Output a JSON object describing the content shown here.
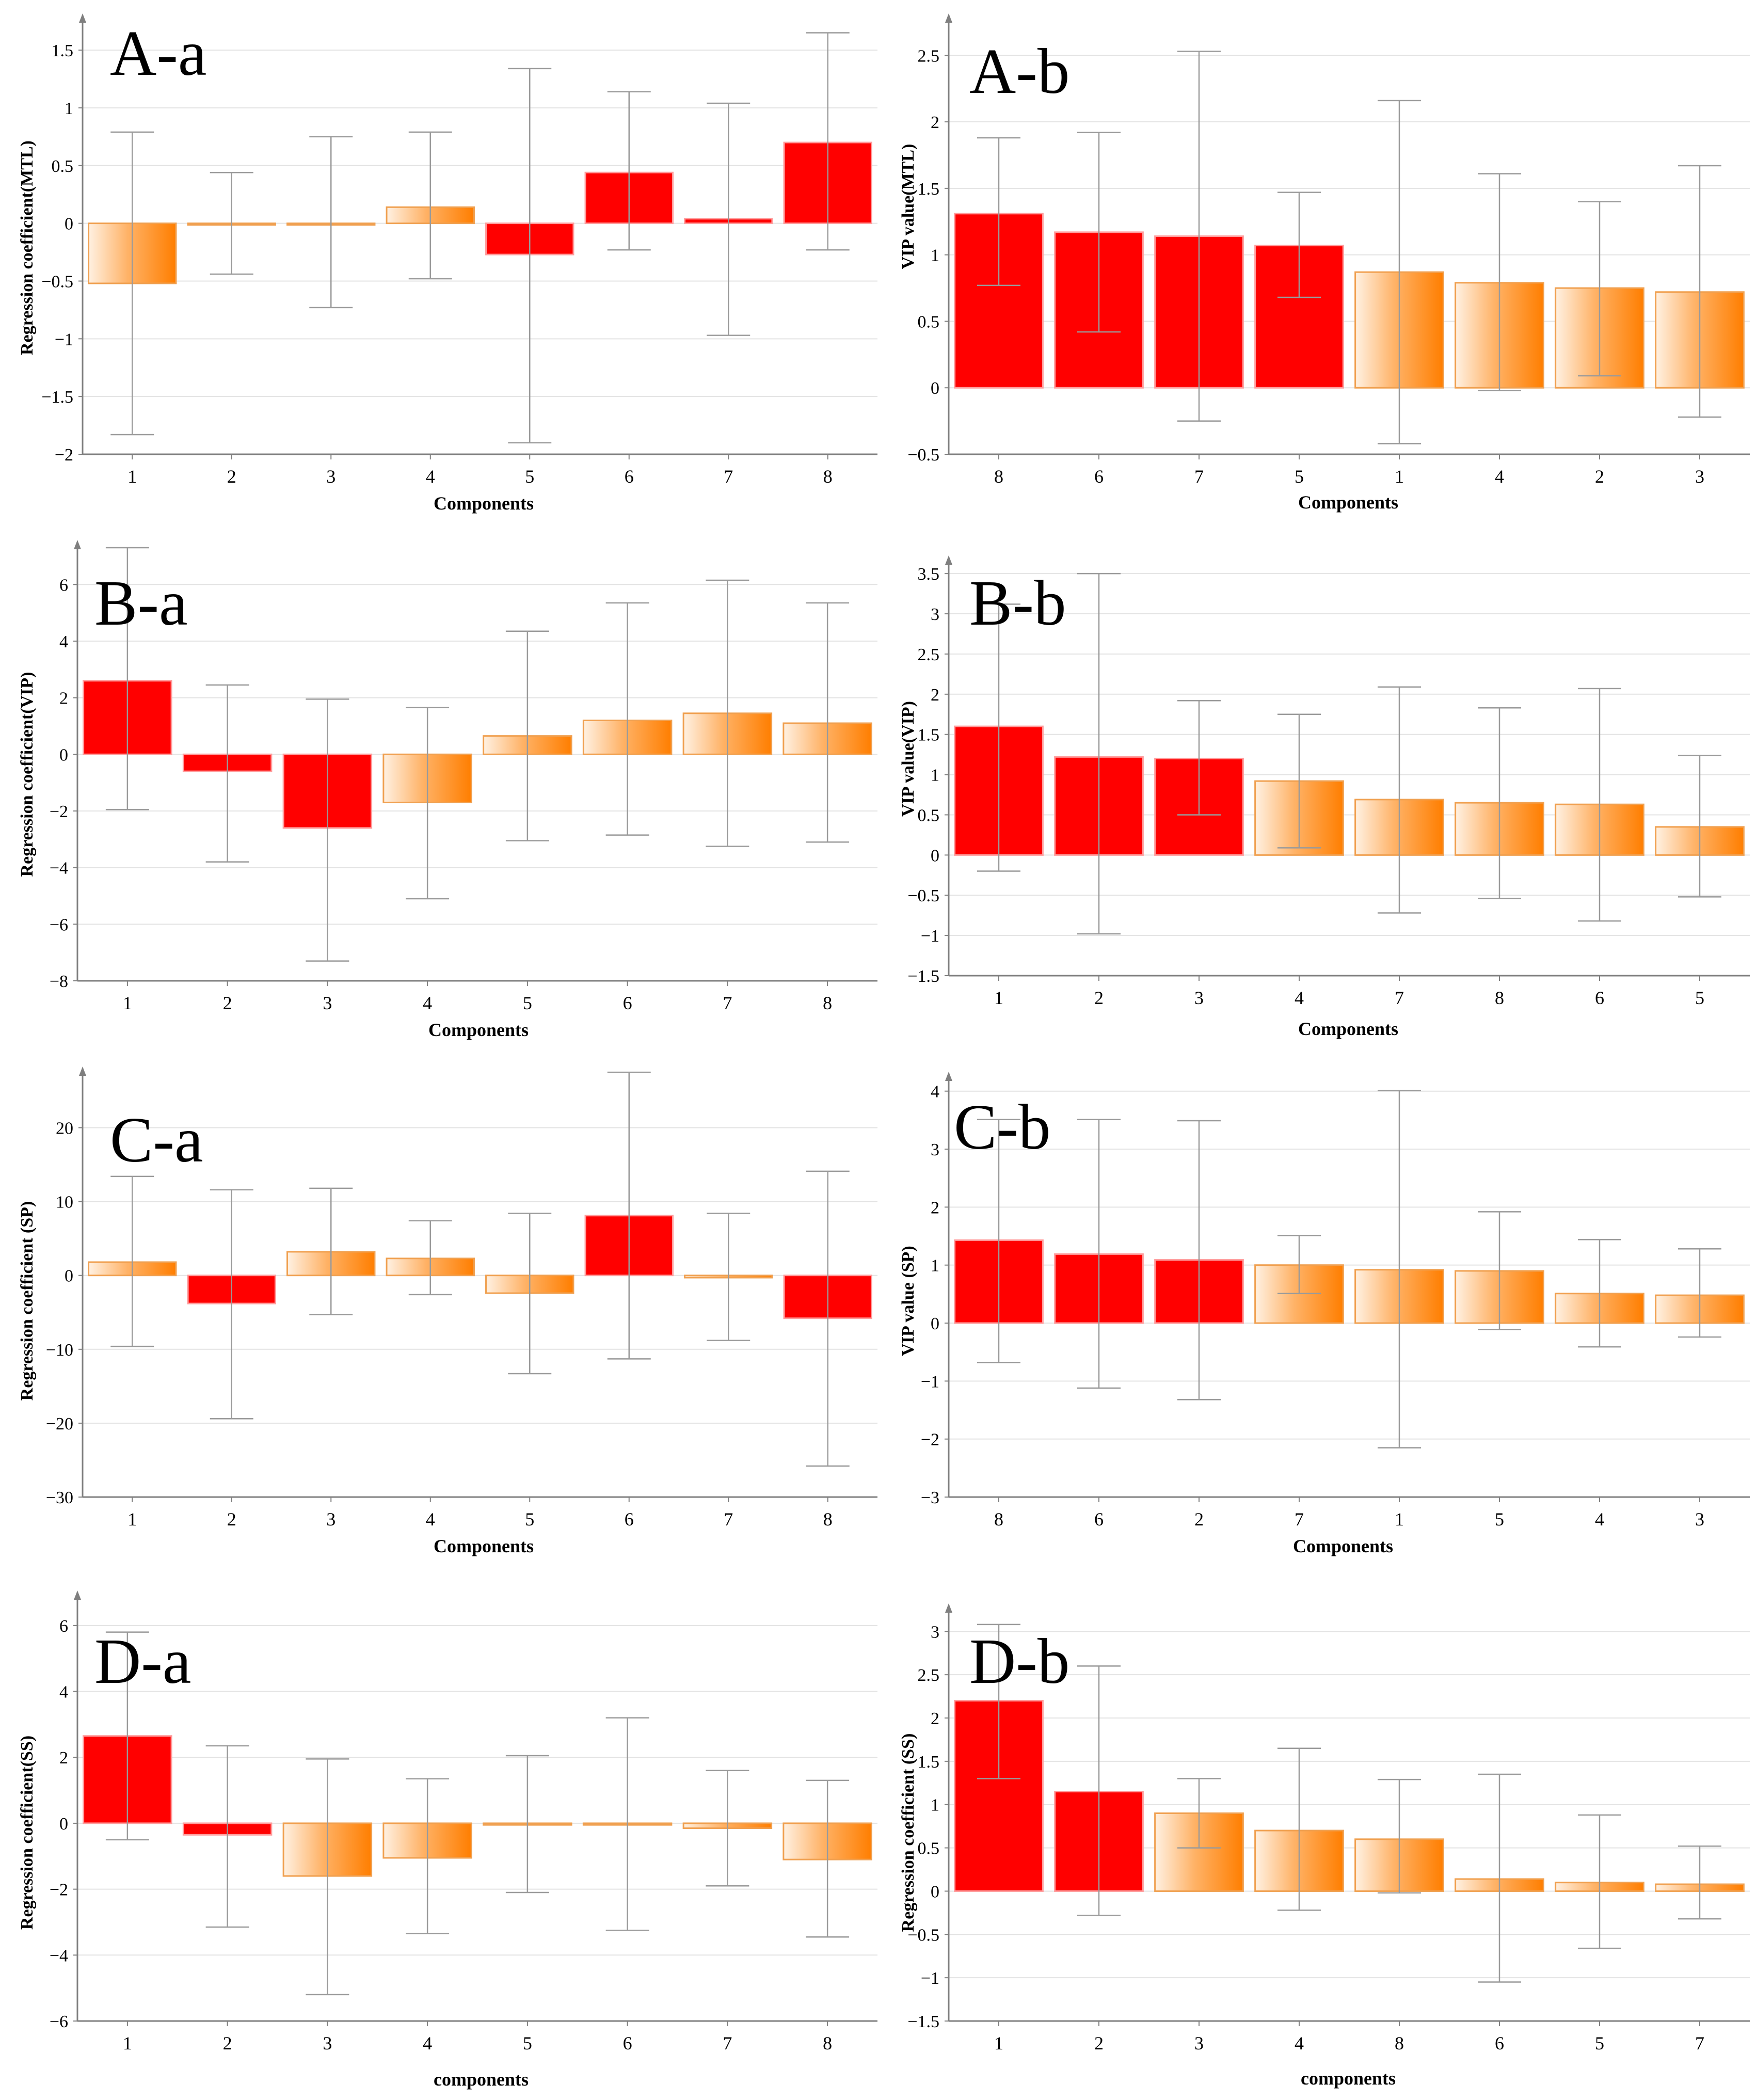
{
  "colors": {
    "red": "#ff0000",
    "orange_light": "#fff1e2",
    "orange_dark": "#ff7e00",
    "grid": "#e3e3e3",
    "axis": "#7f7f7f",
    "error_bar": "#9a9a9a",
    "text": "#000000"
  },
  "chart_data": [
    {
      "type": "bar",
      "panel_label": "A-a",
      "title": "",
      "xlabel": "Components",
      "ylabel": "Regression coefficient(MTL)",
      "ylim": [
        -2,
        1.8
      ],
      "yticks": [
        -2,
        -1.5,
        -1,
        -0.5,
        0,
        0.5,
        1,
        1.5
      ],
      "ytick_labels": [
        "−2",
        "−1.5",
        "−1",
        "−0.5",
        "0",
        "0.5",
        "1",
        "1.5"
      ],
      "categories": [
        "1",
        "2",
        "3",
        "4",
        "5",
        "6",
        "7",
        "8"
      ],
      "values": [
        -0.52,
        -0.01,
        -0.01,
        0.14,
        -0.27,
        0.44,
        0.04,
        0.7
      ],
      "error_low": [
        -1.83,
        -0.44,
        -0.73,
        -0.48,
        -1.9,
        -0.23,
        -0.97,
        -0.23
      ],
      "error_high": [
        0.79,
        0.44,
        0.75,
        0.79,
        1.34,
        1.14,
        1.04,
        1.65
      ],
      "bar_style": [
        "orange",
        "orange",
        "orange",
        "orange",
        "red",
        "red",
        "red",
        "red"
      ]
    },
    {
      "type": "bar",
      "panel_label": "A-b",
      "title": "",
      "xlabel": "Components",
      "ylabel": "VIP value(MTL)",
      "ylim": [
        -0.5,
        2.8
      ],
      "yticks": [
        -0.5,
        0,
        0.5,
        1,
        1.5,
        2,
        2.5
      ],
      "ytick_labels": [
        "−0.5",
        "0",
        "0.5",
        "1",
        "1.5",
        "2",
        "2.5"
      ],
      "categories": [
        "8",
        "6",
        "7",
        "5",
        "1",
        "4",
        "2",
        "3"
      ],
      "values": [
        1.31,
        1.17,
        1.14,
        1.07,
        0.87,
        0.79,
        0.75,
        0.72
      ],
      "error_low": [
        0.77,
        0.42,
        -0.25,
        0.68,
        -0.42,
        -0.02,
        0.09,
        -0.22
      ],
      "error_high": [
        1.88,
        1.92,
        2.53,
        1.47,
        2.16,
        1.61,
        1.4,
        1.67
      ],
      "bar_style": [
        "red",
        "red",
        "red",
        "red",
        "orange",
        "orange",
        "orange",
        "orange"
      ]
    },
    {
      "type": "bar",
      "panel_label": "B-a",
      "title": "",
      "xlabel": "Components",
      "ylabel": "Regression coefficient(VIP)",
      "ylim": [
        -8,
        7.5
      ],
      "yticks": [
        -8,
        -6,
        -4,
        -2,
        0,
        2,
        4,
        6
      ],
      "ytick_labels": [
        "−8",
        "−6",
        "−4",
        "−2",
        "0",
        "2",
        "4",
        "6"
      ],
      "categories": [
        "1",
        "2",
        "3",
        "4",
        "5",
        "6",
        "7",
        "8"
      ],
      "values": [
        2.6,
        -0.6,
        -2.6,
        -1.7,
        0.65,
        1.2,
        1.45,
        1.1
      ],
      "error_low": [
        -1.95,
        -3.8,
        -7.3,
        -5.1,
        -3.05,
        -2.85,
        -3.25,
        -3.1
      ],
      "error_high": [
        7.3,
        2.45,
        1.95,
        1.65,
        4.35,
        5.35,
        6.15,
        5.35
      ],
      "bar_style": [
        "red",
        "red",
        "red",
        "orange",
        "orange",
        "orange",
        "orange",
        "orange"
      ]
    },
    {
      "type": "bar",
      "panel_label": "B-b",
      "title": "",
      "xlabel": "Components",
      "ylabel": "VIP value(VIP)",
      "ylim": [
        -1.5,
        3.7
      ],
      "yticks": [
        -1.5,
        -1,
        -0.5,
        0,
        0.5,
        1,
        1.5,
        2,
        2.5,
        3,
        3.5
      ],
      "ytick_labels": [
        "−1.5",
        "−1",
        "−0.5",
        "0",
        "0.5",
        "1",
        "1.5",
        "2",
        "2.5",
        "3",
        "3.5"
      ],
      "categories": [
        "1",
        "2",
        "3",
        "4",
        "7",
        "8",
        "6",
        "5"
      ],
      "values": [
        1.6,
        1.22,
        1.2,
        0.92,
        0.69,
        0.65,
        0.63,
        0.35
      ],
      "error_low": [
        -0.2,
        -0.98,
        0.5,
        0.09,
        -0.72,
        -0.54,
        -0.82,
        -0.52
      ],
      "error_high": [
        3.12,
        3.5,
        1.92,
        1.75,
        2.09,
        1.83,
        2.07,
        1.24
      ],
      "bar_style": [
        "red",
        "red",
        "red",
        "orange",
        "orange",
        "orange",
        "orange",
        "orange"
      ]
    },
    {
      "type": "bar",
      "panel_label": "C-a",
      "title": "",
      "xlabel": "Components",
      "ylabel": "Regression coefficient  (SP)",
      "ylim": [
        -30,
        28
      ],
      "yticks": [
        -30,
        -20,
        -10,
        0,
        10,
        20
      ],
      "ytick_labels": [
        "−30",
        "−20",
        "−10",
        "0",
        "10",
        "20"
      ],
      "categories": [
        "1",
        "2",
        "3",
        "4",
        "5",
        "6",
        "7",
        "8"
      ],
      "values": [
        1.8,
        -3.8,
        3.2,
        2.3,
        -2.4,
        8.1,
        -0.3,
        -5.8
      ],
      "error_low": [
        -9.6,
        -19.4,
        -5.3,
        -2.6,
        -13.3,
        -11.3,
        -8.8,
        -25.8
      ],
      "error_high": [
        13.4,
        11.6,
        11.8,
        7.4,
        8.4,
        27.5,
        8.4,
        14.1
      ],
      "bar_style": [
        "orange",
        "red",
        "orange",
        "orange",
        "orange",
        "red",
        "orange",
        "red"
      ]
    },
    {
      "type": "bar",
      "panel_label": "C-b",
      "title": "",
      "xlabel": "Components",
      "ylabel": "VIP value  (SP)",
      "ylim": [
        -3,
        4.3
      ],
      "yticks": [
        -3,
        -2,
        -1,
        0,
        1,
        2,
        3,
        4
      ],
      "ytick_labels": [
        "−3",
        "−2",
        "−1",
        "0",
        "1",
        "2",
        "3",
        "4"
      ],
      "categories": [
        "8",
        "6",
        "2",
        "7",
        "1",
        "5",
        "4",
        "3"
      ],
      "values": [
        1.43,
        1.19,
        1.09,
        1.0,
        0.92,
        0.9,
        0.51,
        0.48
      ],
      "error_low": [
        -0.68,
        -1.12,
        -1.32,
        0.51,
        -2.15,
        -0.11,
        -0.41,
        -0.24
      ],
      "error_high": [
        3.51,
        3.51,
        3.49,
        1.51,
        4.01,
        1.92,
        1.44,
        1.28
      ],
      "bar_style": [
        "red",
        "red",
        "red",
        "orange",
        "orange",
        "orange",
        "orange",
        "orange"
      ]
    },
    {
      "type": "bar",
      "panel_label": "D-a",
      "title": "",
      "xlabel": "components",
      "ylabel": "Regression coefficient(SS)",
      "ylim": [
        -6,
        7
      ],
      "yticks": [
        -6,
        -4,
        -2,
        0,
        2,
        4,
        6
      ],
      "ytick_labels": [
        "−6",
        "−4",
        "−2",
        "0",
        "2",
        "4",
        "6"
      ],
      "categories": [
        "1",
        "2",
        "3",
        "4",
        "5",
        "6",
        "7",
        "8"
      ],
      "values": [
        2.65,
        -0.35,
        -1.6,
        -1.05,
        -0.05,
        -0.05,
        -0.15,
        -1.1
      ],
      "error_low": [
        -0.5,
        -3.15,
        -5.2,
        -3.35,
        -2.1,
        -3.25,
        -1.9,
        -3.45
      ],
      "error_high": [
        5.8,
        2.35,
        1.95,
        1.35,
        2.05,
        3.2,
        1.6,
        1.3
      ],
      "bar_style": [
        "red",
        "red",
        "orange",
        "orange",
        "orange",
        "orange",
        "orange",
        "orange"
      ]
    },
    {
      "type": "bar",
      "panel_label": "D-b",
      "title": "",
      "xlabel": "components",
      "ylabel": "Regression coefficient   (SS)",
      "ylim": [
        -1.5,
        3.3
      ],
      "yticks": [
        -1.5,
        -1,
        -0.5,
        0,
        0.5,
        1,
        1.5,
        2,
        2.5,
        3
      ],
      "ytick_labels": [
        "−1.5",
        "−1",
        "−0.5",
        "0",
        "0.5",
        "1",
        "1.5",
        "2",
        "2.5",
        "3"
      ],
      "categories": [
        "1",
        "2",
        "3",
        "4",
        "8",
        "6",
        "5",
        "7"
      ],
      "values": [
        2.2,
        1.15,
        0.9,
        0.7,
        0.6,
        0.14,
        0.1,
        0.08
      ],
      "error_low": [
        1.3,
        -0.28,
        0.5,
        -0.22,
        -0.02,
        -1.05,
        -0.66,
        -0.32
      ],
      "error_high": [
        3.08,
        2.6,
        1.3,
        1.65,
        1.29,
        1.35,
        0.88,
        0.52
      ],
      "bar_style": [
        "red",
        "red",
        "orange",
        "orange",
        "orange",
        "orange",
        "orange",
        "orange"
      ]
    }
  ]
}
